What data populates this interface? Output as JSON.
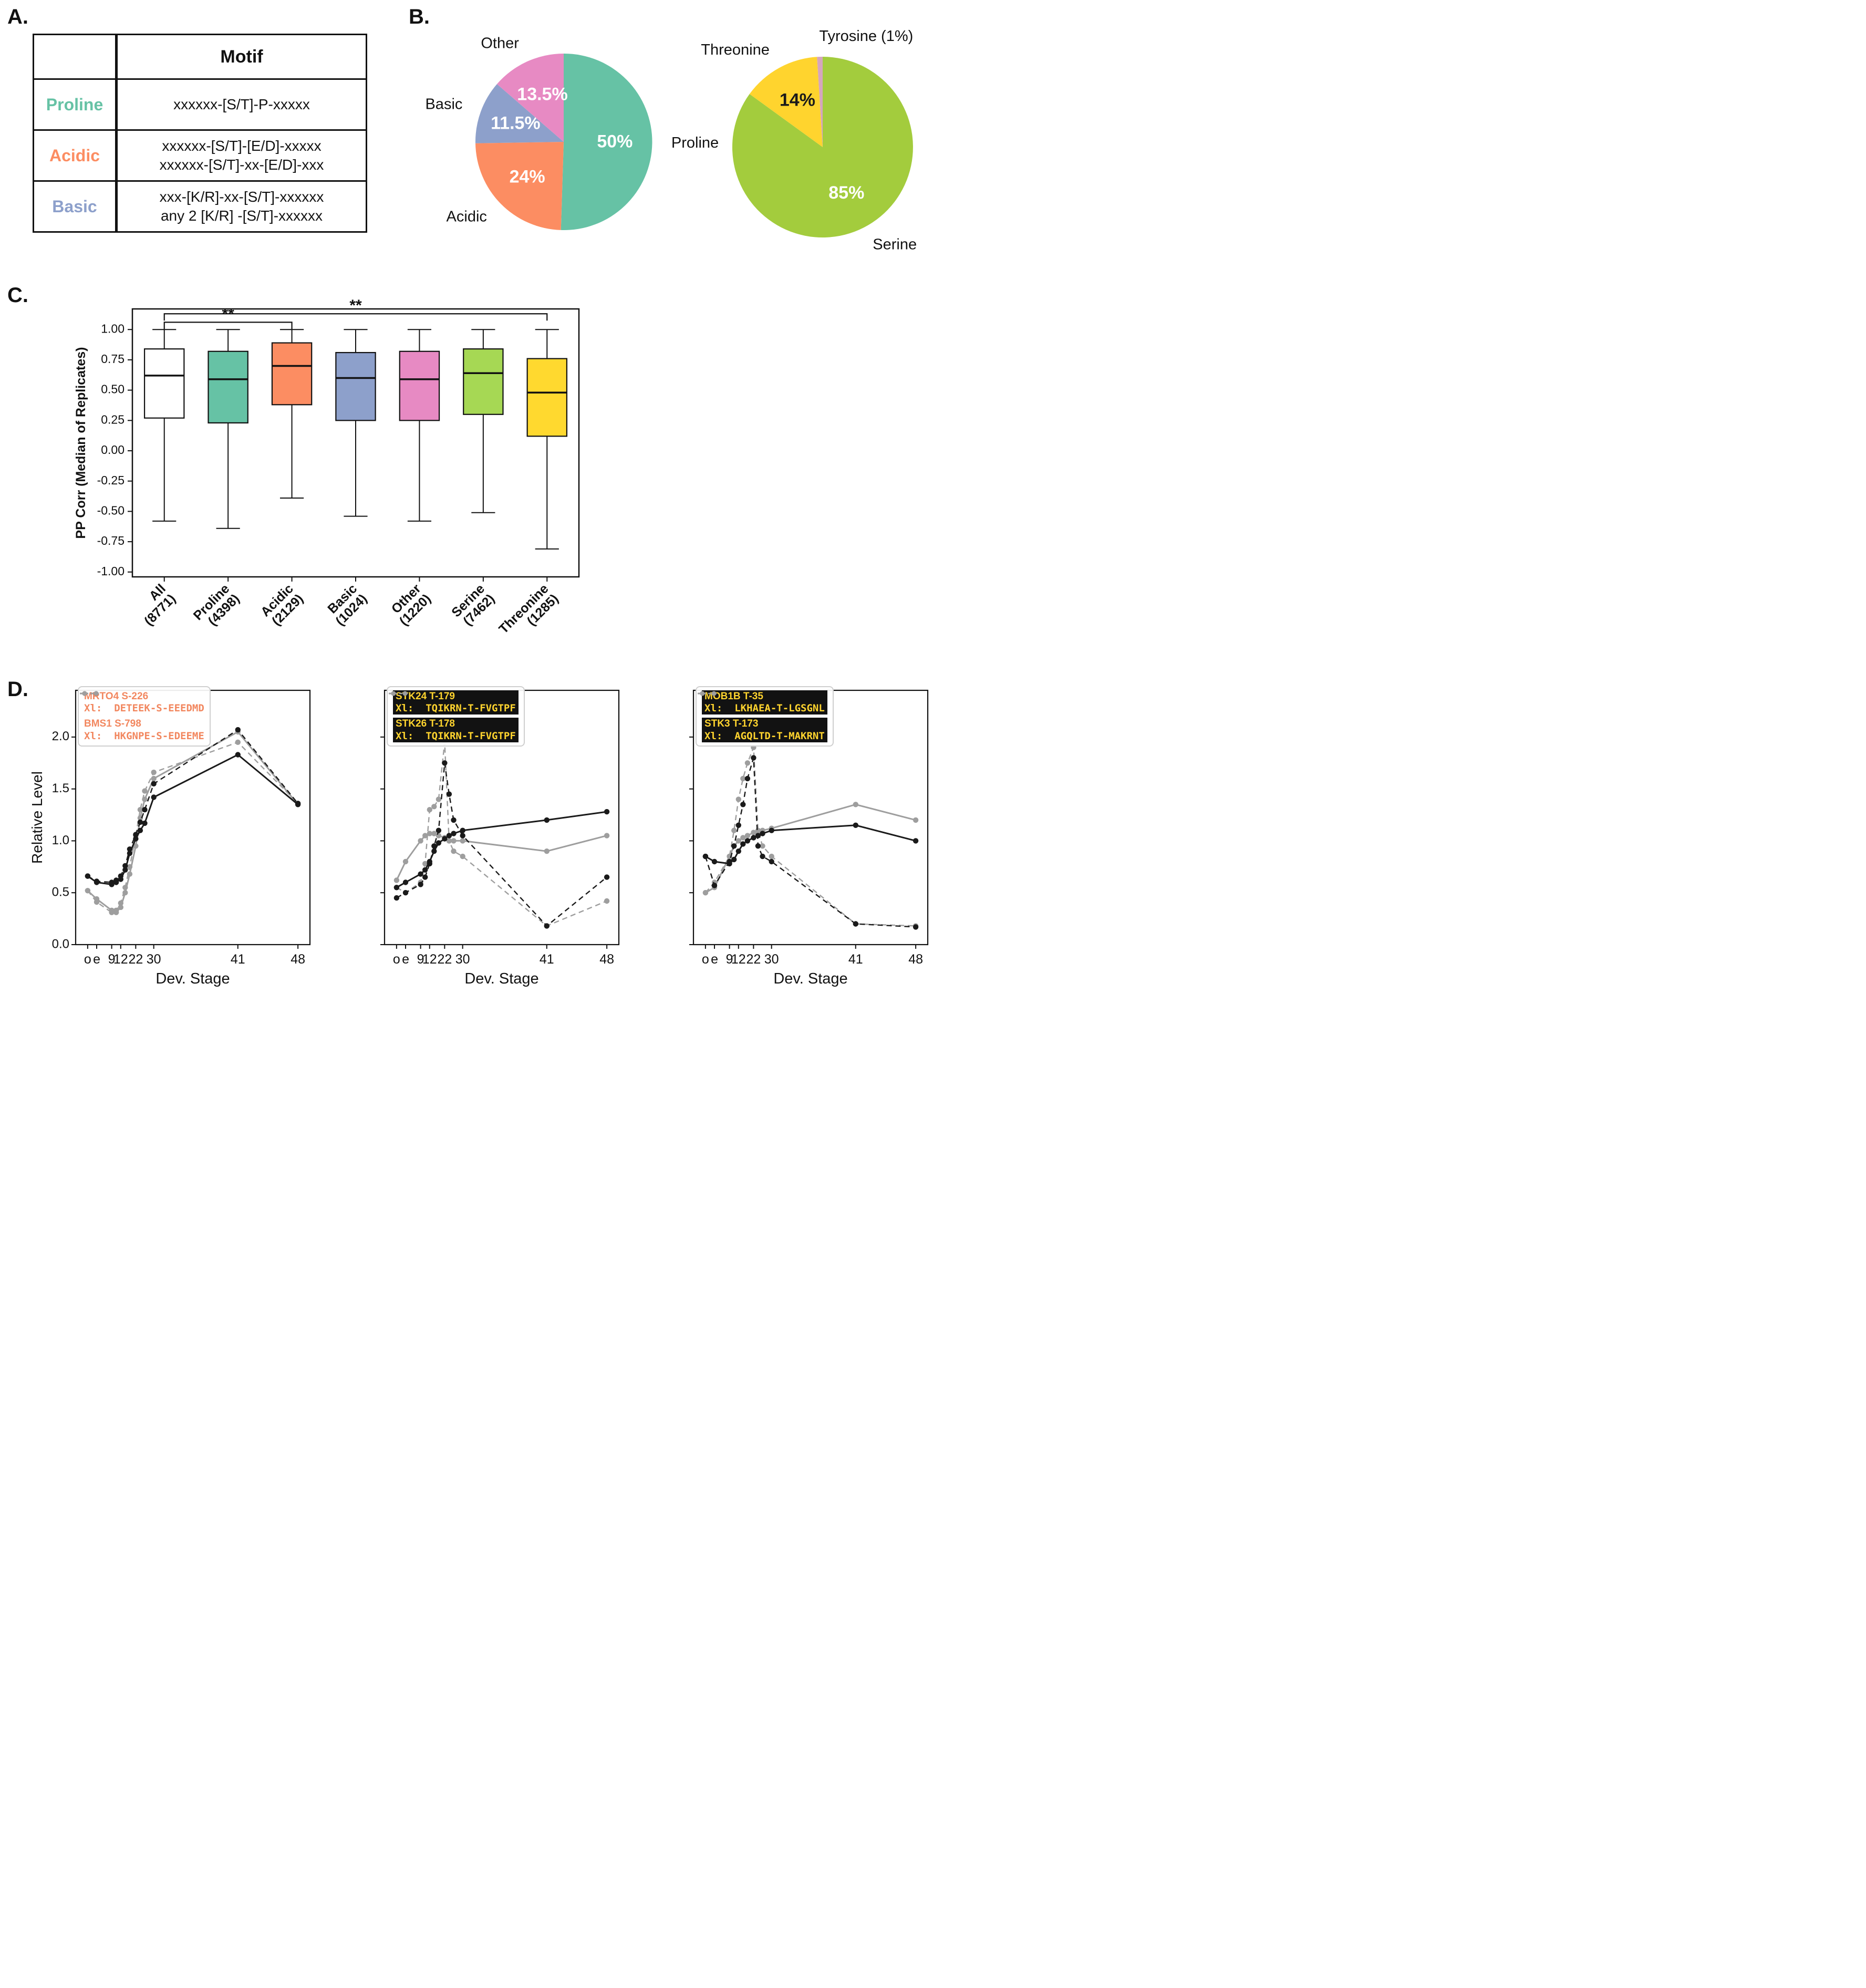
{
  "figure": {
    "a_label": "A.",
    "b_label": "B.",
    "c_label": "C.",
    "d_label": "D."
  },
  "motif_table": {
    "header": "Motif",
    "rows": [
      {
        "label": "Proline",
        "color": "#66c2a5",
        "lines": [
          "xxxxxx-[S/T]-P-xxxxx"
        ]
      },
      {
        "label": "Acidic",
        "color": "#fc8d62",
        "lines": [
          "xxxxxx-[S/T]-[E/D]-xxxxx",
          "xxxxxx-[S/T]-xx-[E/D]-xxx"
        ]
      },
      {
        "label": "Basic",
        "color": "#8da0cb",
        "lines": [
          "xxx-[K/R]-xx-[S/T]-xxxxxx",
          "any 2 [K/R] -[S/T]-xxxxxx"
        ]
      }
    ]
  },
  "chart_data": [
    {
      "id": "pie-motif",
      "type": "pie",
      "start_angle": 90,
      "clockwise": true,
      "slices": [
        {
          "label": "Proline",
          "value": 50,
          "pct_label": "50%",
          "color": "#66c2a5",
          "pct_color": "#ffffff",
          "anchor": "start"
        },
        {
          "label": "Acidic",
          "value": 24,
          "pct_label": "24%",
          "color": "#fc8d62",
          "pct_color": "#ffffff",
          "anchor": "end"
        },
        {
          "label": "Basic",
          "value": 11.5,
          "pct_label": "11.5%",
          "color": "#8da0cb",
          "pct_color": "#ffffff",
          "anchor": "end"
        },
        {
          "label": "Other",
          "value": 13.5,
          "pct_label": "13.5%",
          "color": "#e78ac3",
          "pct_color": "#ffffff",
          "anchor": "end"
        }
      ]
    },
    {
      "id": "pie-residue",
      "type": "pie",
      "start_angle": 90,
      "clockwise": true,
      "slices": [
        {
          "label": "Serine",
          "value": 85,
          "pct_label": "85%",
          "color": "#a3cc3d",
          "pct_color": "#ffffff",
          "anchor": "start"
        },
        {
          "label": "Threonine",
          "value": 14,
          "pct_label": "14%",
          "color": "#ffd42e",
          "pct_color": "#1a1a1a",
          "anchor": "end"
        },
        {
          "label": "Tyrosine (1%)",
          "value": 1,
          "pct_label": "",
          "color": "#d5a6bd",
          "anchor": "start"
        }
      ]
    },
    {
      "id": "box-ppcorr",
      "type": "box",
      "ylabel": "PP Corr (Median of Replicates)",
      "ylim": [
        -1.0,
        1.0
      ],
      "draw_ylim": [
        -1.04,
        1.17
      ],
      "yticks": [
        1.0,
        0.75,
        0.5,
        0.25,
        0.0,
        -0.25,
        -0.5,
        -0.75,
        -1.0
      ],
      "groups": [
        {
          "label": "All",
          "n": "(8771)",
          "color": "#ffffff",
          "whislo": -0.58,
          "q1": 0.27,
          "med": 0.62,
          "q3": 0.84,
          "whishi": 1.0
        },
        {
          "label": "Proline",
          "n": "(4398)",
          "color": "#66c2a5",
          "whislo": -0.64,
          "q1": 0.23,
          "med": 0.59,
          "q3": 0.82,
          "whishi": 1.0
        },
        {
          "label": "Acidic",
          "n": "(2129)",
          "color": "#fc8d62",
          "whislo": -0.39,
          "q1": 0.38,
          "med": 0.7,
          "q3": 0.89,
          "whishi": 1.0
        },
        {
          "label": "Basic",
          "n": "(1024)",
          "color": "#8da0cb",
          "whislo": -0.54,
          "q1": 0.25,
          "med": 0.6,
          "q3": 0.81,
          "whishi": 1.0
        },
        {
          "label": "Other",
          "n": "(1220)",
          "color": "#e78ac3",
          "whislo": -0.58,
          "q1": 0.25,
          "med": 0.59,
          "q3": 0.82,
          "whishi": 1.0
        },
        {
          "label": "Serine",
          "n": "(7462)",
          "color": "#a6d854",
          "whislo": -0.51,
          "q1": 0.3,
          "med": 0.64,
          "q3": 0.84,
          "whishi": 1.0
        },
        {
          "label": "Threonine",
          "n": "(1285)",
          "color": "#ffd92f",
          "whislo": -0.81,
          "q1": 0.12,
          "med": 0.48,
          "q3": 0.76,
          "whishi": 1.0
        }
      ],
      "significance": [
        {
          "from": 0,
          "to": 2,
          "label": "**",
          "height": 1.06
        },
        {
          "from": 0,
          "to": 6,
          "label": "**",
          "height": 1.13
        }
      ]
    },
    {
      "id": "line-acidic",
      "type": "line",
      "xlabel": "Dev. Stage",
      "ylabel": "Relative Level",
      "show_ytick_labels": true,
      "xlim": [
        -8,
        148
      ],
      "draw_ylim": [
        0,
        2.45
      ],
      "yticks": [
        0,
        0.5,
        1.0,
        1.5,
        2.0
      ],
      "xticks": [
        {
          "pos": 0,
          "label": "o"
        },
        {
          "pos": 6,
          "label": "e"
        },
        {
          "pos": 16,
          "label": "9"
        },
        {
          "pos": 22,
          "label": "12"
        },
        {
          "pos": 32,
          "label": "22"
        },
        {
          "pos": 44,
          "label": "30"
        },
        {
          "pos": 100,
          "label": "41"
        },
        {
          "pos": 140,
          "label": "48"
        }
      ],
      "x": [
        0,
        6,
        16,
        19,
        22,
        25,
        28,
        32,
        35,
        38,
        44,
        100,
        140
      ],
      "legend": {
        "text_color": "#f2875f",
        "text_bg": null,
        "entries": [
          {
            "name": "MRTO4 S-226",
            "seq": "Xl:  DETEEK-S-EEEDMD",
            "marker": "#1a1a1a"
          },
          {
            "name": "BMS1 S-798",
            "seq": "Xl:  HKGNPE-S-EDEEME",
            "marker": "#9e9e9e"
          }
        ]
      },
      "series": [
        {
          "label": "BMS1 S-798",
          "color": "#9e9e9e",
          "dash": true,
          "y": [
            0.52,
            0.41,
            0.31,
            0.33,
            0.4,
            0.55,
            0.75,
            1.05,
            1.3,
            1.48,
            1.66,
            1.95,
            1.36
          ]
        },
        {
          "label": "BMS1 S-798",
          "color": "#9e9e9e",
          "dash": false,
          "y": [
            0.52,
            0.44,
            0.33,
            0.31,
            0.36,
            0.5,
            0.68,
            0.95,
            1.22,
            1.4,
            1.6,
            2.05,
            1.35
          ]
        },
        {
          "label": "MRTO4 S-226",
          "color": "#1a1a1a",
          "dash": true,
          "y": [
            0.66,
            0.61,
            0.6,
            0.62,
            0.66,
            0.76,
            0.92,
            1.06,
            1.18,
            1.3,
            1.55,
            2.07,
            1.36
          ]
        },
        {
          "label": "MRTO4 S-226",
          "color": "#1a1a1a",
          "dash": false,
          "y": [
            0.66,
            0.6,
            0.58,
            0.6,
            0.63,
            0.72,
            0.88,
            1.02,
            1.1,
            1.17,
            1.42,
            1.83,
            1.35
          ]
        }
      ]
    },
    {
      "id": "line-threonine-stk",
      "type": "line",
      "xlabel": "Dev. Stage",
      "ylabel": null,
      "show_ytick_labels": false,
      "xlim": [
        -8,
        148
      ],
      "draw_ylim": [
        0,
        2.45
      ],
      "yticks": [
        0,
        0.5,
        1.0,
        1.5,
        2.0
      ],
      "xticks": [
        {
          "pos": 0,
          "label": "o"
        },
        {
          "pos": 6,
          "label": "e"
        },
        {
          "pos": 16,
          "label": "9"
        },
        {
          "pos": 22,
          "label": "12"
        },
        {
          "pos": 32,
          "label": "22"
        },
        {
          "pos": 44,
          "label": "30"
        },
        {
          "pos": 100,
          "label": "41"
        },
        {
          "pos": 140,
          "label": "48"
        }
      ],
      "x": [
        0,
        6,
        16,
        19,
        22,
        25,
        28,
        32,
        35,
        38,
        44,
        100,
        140
      ],
      "legend": {
        "text_color": "#ffd42e",
        "text_bg": "#121212",
        "entries": [
          {
            "name": "STK24 T-179",
            "seq": "Xl:  TQIKRN-T-FVGTPF",
            "marker": "#1a1a1a"
          },
          {
            "name": "STK26 T-178",
            "seq": "Xl:  TQIKRN-T-FVGTPF",
            "marker": "#9e9e9e"
          }
        ]
      },
      "series": [
        {
          "label": "STK26 T-178",
          "color": "#9e9e9e",
          "dash": true,
          "y": [
            0.55,
            0.5,
            0.6,
            0.78,
            1.3,
            1.33,
            1.4,
            1.95,
            1.0,
            0.9,
            0.85,
            0.18,
            0.42
          ]
        },
        {
          "label": "STK26 T-178",
          "color": "#9e9e9e",
          "dash": false,
          "y": [
            0.62,
            0.8,
            1.0,
            1.05,
            1.07,
            1.07,
            1.05,
            1.03,
            1.0,
            1.0,
            1.0,
            0.9,
            1.05
          ]
        },
        {
          "label": "STK24 T-179",
          "color": "#1a1a1a",
          "dash": true,
          "y": [
            0.45,
            0.5,
            0.58,
            0.65,
            0.78,
            0.95,
            1.1,
            1.75,
            1.45,
            1.2,
            1.05,
            0.18,
            0.65
          ]
        },
        {
          "label": "STK24 T-179",
          "color": "#1a1a1a",
          "dash": false,
          "y": [
            0.55,
            0.6,
            0.68,
            0.72,
            0.8,
            0.9,
            0.98,
            1.02,
            1.05,
            1.07,
            1.1,
            1.2,
            1.28
          ]
        }
      ]
    },
    {
      "id": "line-threonine-mob",
      "type": "line",
      "xlabel": "Dev. Stage",
      "ylabel": null,
      "show_ytick_labels": false,
      "xlim": [
        -8,
        148
      ],
      "draw_ylim": [
        0,
        2.45
      ],
      "yticks": [
        0,
        0.5,
        1.0,
        1.5,
        2.0
      ],
      "xticks": [
        {
          "pos": 0,
          "label": "o"
        },
        {
          "pos": 6,
          "label": "e"
        },
        {
          "pos": 16,
          "label": "9"
        },
        {
          "pos": 22,
          "label": "12"
        },
        {
          "pos": 32,
          "label": "22"
        },
        {
          "pos": 44,
          "label": "30"
        },
        {
          "pos": 100,
          "label": "41"
        },
        {
          "pos": 140,
          "label": "48"
        }
      ],
      "x": [
        0,
        6,
        16,
        19,
        22,
        25,
        28,
        32,
        35,
        38,
        44,
        100,
        140
      ],
      "legend": {
        "text_color": "#ffd42e",
        "text_bg": "#121212",
        "entries": [
          {
            "name": "MOB1B T-35",
            "seq": "Xl:  LKHAEA-T-LGSGNL",
            "marker": "#1a1a1a"
          },
          {
            "name": "STK3 T-173",
            "seq": "Xl:  AGQLTD-T-MAKRNT",
            "marker": "#9e9e9e"
          }
        ]
      },
      "series": [
        {
          "label": "STK3 T-173",
          "color": "#9e9e9e",
          "dash": true,
          "y": [
            0.5,
            0.6,
            0.85,
            1.1,
            1.4,
            1.6,
            1.75,
            1.9,
            1.1,
            0.95,
            0.85,
            0.2,
            0.18
          ]
        },
        {
          "label": "STK3 T-173",
          "color": "#9e9e9e",
          "dash": false,
          "y": [
            0.5,
            0.55,
            0.85,
            0.95,
            1.0,
            1.03,
            1.05,
            1.08,
            1.08,
            1.1,
            1.12,
            1.35,
            1.2
          ]
        },
        {
          "label": "MOB1B T-35",
          "color": "#1a1a1a",
          "dash": true,
          "y": [
            0.85,
            0.57,
            0.8,
            0.95,
            1.15,
            1.35,
            1.6,
            1.8,
            0.95,
            0.85,
            0.8,
            0.2,
            0.17
          ]
        },
        {
          "label": "MOB1B T-35",
          "color": "#1a1a1a",
          "dash": false,
          "y": [
            0.85,
            0.8,
            0.78,
            0.82,
            0.9,
            0.97,
            1.0,
            1.03,
            1.05,
            1.07,
            1.1,
            1.15,
            1.0
          ]
        }
      ]
    }
  ]
}
